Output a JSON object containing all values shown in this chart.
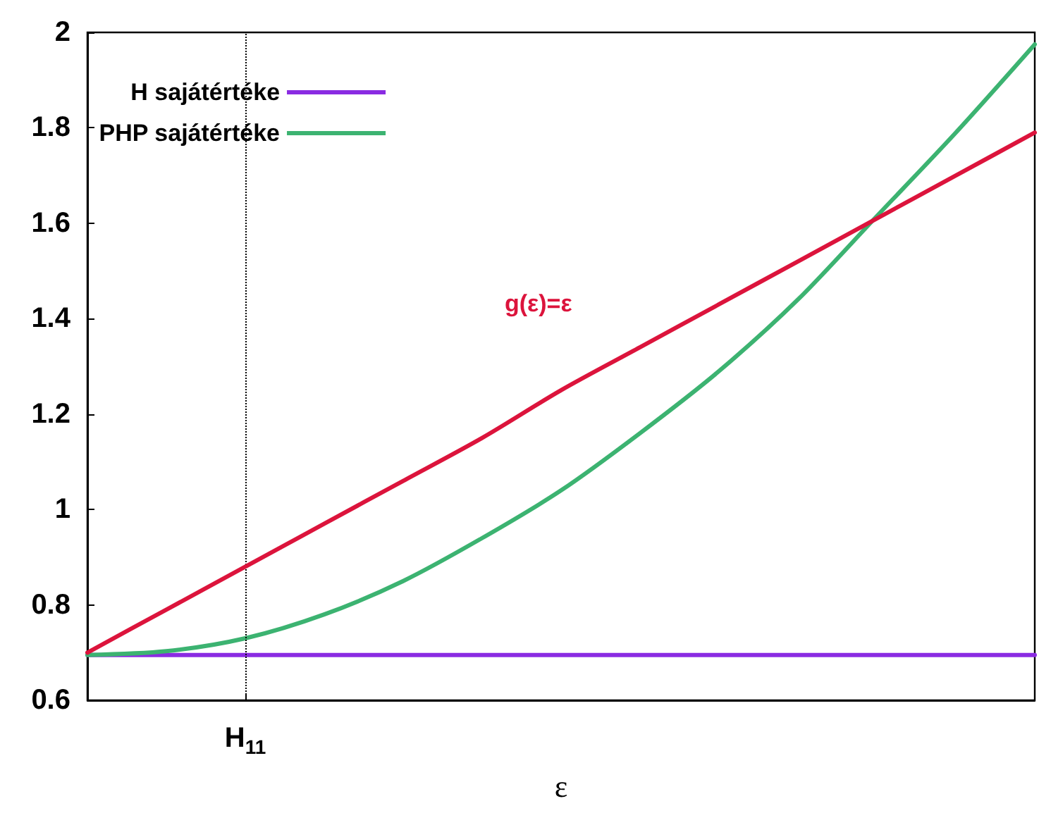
{
  "chart_data": {
    "type": "line",
    "xlabel": "ε",
    "categories": [
      null,
      null,
      "H$_{11}$",
      null,
      null,
      null,
      null,
      null,
      null,
      null,
      null,
      null,
      null
    ],
    "ylim": [
      0.6,
      2
    ],
    "yticks": [
      0.6,
      0.8,
      1,
      1.2,
      1.4,
      1.6,
      1.8,
      2
    ],
    "series": [
      {
        "name": "H sajátértéke",
        "color": "#8a2be2",
        "values": [
          0.695,
          0.695,
          0.695,
          0.695,
          0.695,
          0.695,
          0.695,
          0.695,
          0.695,
          0.695,
          0.695,
          0.695,
          0.695
        ]
      },
      {
        "name": "PHP sajátértéke",
        "color": "#3cb371",
        "values": [
          0.695,
          0.703,
          0.73,
          0.78,
          0.85,
          0.94,
          1.04,
          1.16,
          1.29,
          1.44,
          1.615,
          1.79,
          1.975
        ]
      },
      {
        "color": "#dc143c",
        "values": [
          0.7,
          0.79,
          0.88,
          0.97,
          1.06,
          1.15,
          1.25,
          1.34,
          1.43,
          1.52,
          1.61,
          1.7,
          1.79
        ]
      }
    ],
    "annotations": [
      "g(ε)=ε"
    ],
    "ref_lines": [
      {
        "axis": "x",
        "value": "H$_{11}$",
        "line_style": "dotted",
        "color": "#000000"
      }
    ],
    "legend": "top left",
    "grid": false,
    "marker": "none",
    "line_style": "solid"
  }
}
